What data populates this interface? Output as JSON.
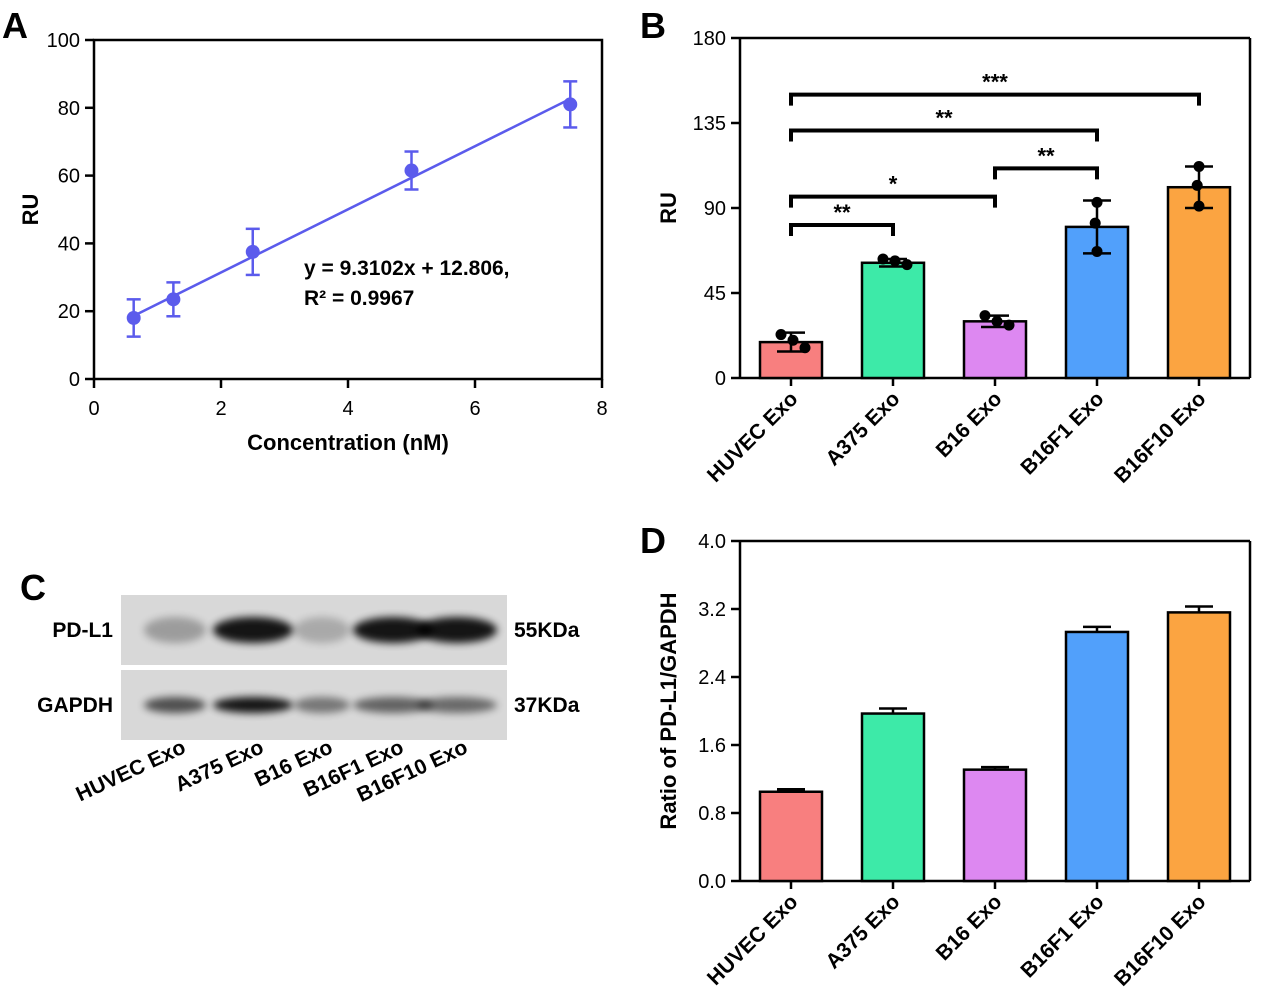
{
  "panels": {
    "a": "A",
    "b": "B",
    "c": "C",
    "d": "D"
  },
  "chart_data": [
    {
      "panel": "A",
      "type": "scatter",
      "xlabel": "Concentration (nM)",
      "ylabel": "RU",
      "xlim": [
        0,
        8
      ],
      "ylim": [
        0,
        100
      ],
      "xticks": [
        0,
        2,
        4,
        6,
        8
      ],
      "yticks": [
        0,
        20,
        40,
        60,
        80,
        100
      ],
      "points": [
        {
          "x": 0.625,
          "y": 18.0,
          "err": 5.5
        },
        {
          "x": 1.25,
          "y": 23.5,
          "err": 5.0
        },
        {
          "x": 2.5,
          "y": 37.5,
          "err": 6.8
        },
        {
          "x": 5.0,
          "y": 61.5,
          "err": 5.6
        },
        {
          "x": 7.5,
          "y": 81.0,
          "err": 6.8
        }
      ],
      "fit": {
        "slope": 9.3102,
        "intercept": 12.806
      },
      "annotation": [
        "y = 9.3102x + 12.806,",
        "R² = 0.9967"
      ],
      "color": "#5b5bec"
    },
    {
      "panel": "B",
      "type": "bar",
      "ylabel": "RU",
      "ylim": [
        0,
        180
      ],
      "yticks": [
        0,
        45,
        90,
        135,
        180
      ],
      "categories": [
        "HUVEC Exo",
        "A375 Exo",
        "B16 Exo",
        "B16F1 Exo",
        "B16F10 Exo"
      ],
      "values": [
        19,
        61,
        30,
        80,
        101
      ],
      "errors": [
        5,
        2,
        3,
        14,
        11
      ],
      "dots": [
        [
          23,
          20,
          16
        ],
        [
          63,
          62,
          60
        ],
        [
          33,
          30,
          28
        ],
        [
          93,
          82,
          67
        ],
        [
          112,
          102,
          91
        ]
      ],
      "colors": [
        "#f87f7f",
        "#3deaa8",
        "#dd88f1",
        "#51a0fb",
        "#fba441"
      ],
      "significance": [
        {
          "from": 0,
          "to": 1,
          "y": 81,
          "label": "**"
        },
        {
          "from": 0,
          "to": 2,
          "y": 96,
          "label": "*"
        },
        {
          "from": 2,
          "to": 3,
          "y": 111,
          "label": "**"
        },
        {
          "from": 0,
          "to": 3,
          "y": 131,
          "label": "**"
        },
        {
          "from": 0,
          "to": 4,
          "y": 150,
          "label": "***"
        }
      ]
    },
    {
      "panel": "D",
      "type": "bar",
      "ylabel": "Ratio of PD-L1/GAPDH",
      "ylim": [
        0,
        4.0
      ],
      "yticks": [
        "0.0",
        "0.8",
        "1.6",
        "2.4",
        "3.2",
        "4.0"
      ],
      "categories": [
        "HUVEC Exo",
        "A375 Exo",
        "B16 Exo",
        "B16F1 Exo",
        "B16F10 Exo"
      ],
      "values": [
        1.05,
        1.97,
        1.31,
        2.93,
        3.16
      ],
      "errors": [
        0.03,
        0.06,
        0.03,
        0.06,
        0.07
      ],
      "colors": [
        "#f87f7f",
        "#3deaa8",
        "#dd88f1",
        "#51a0fb",
        "#fba441"
      ]
    }
  ],
  "blot": {
    "rows": [
      {
        "label": "PD-L1",
        "size": "55KDa",
        "intensity": [
          0.15,
          0.95,
          0.08,
          1.0,
          0.92
        ]
      },
      {
        "label": "GAPDH",
        "size": "37KDa",
        "intensity": [
          0.55,
          0.98,
          0.35,
          0.45,
          0.42
        ]
      }
    ],
    "lanes": [
      "HUVEC  Exo",
      "A375 Exo",
      "B16 Exo",
      "B16F1 Exo",
      "B16F10 Exo"
    ]
  }
}
